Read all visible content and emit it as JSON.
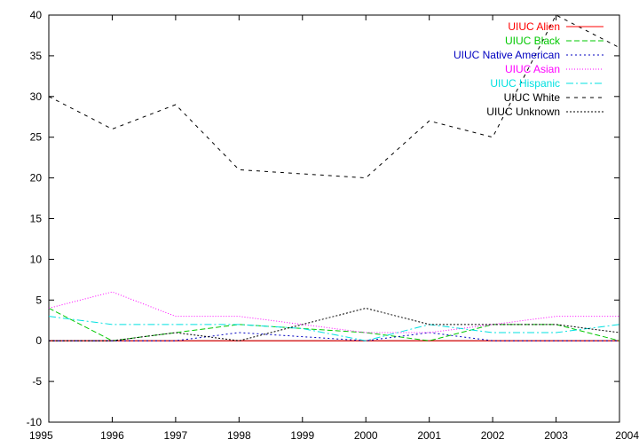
{
  "chart_data": {
    "type": "line",
    "title": "",
    "xlabel": "",
    "ylabel": "",
    "xlim": [
      1995,
      2004
    ],
    "ylim": [
      -10,
      40
    ],
    "x": [
      1995,
      1996,
      1997,
      1998,
      1999,
      2000,
      2001,
      2002,
      2003,
      2004
    ],
    "x_ticks": [
      "1995",
      "1996",
      "1997",
      "1998",
      "1999",
      "2000",
      "2001",
      "2002",
      "2003",
      "2004"
    ],
    "y_ticks": [
      "-10",
      "-5",
      "0",
      "5",
      "10",
      "15",
      "20",
      "25",
      "30",
      "35",
      "40"
    ],
    "grid": false,
    "legend_position": "top-right",
    "series": [
      {
        "name": "UIUC Alien",
        "color": "#ff0000",
        "dash": "solid",
        "values": [
          0,
          0,
          0,
          0,
          0,
          0,
          0,
          0,
          0,
          0
        ]
      },
      {
        "name": "UIUC Black",
        "color": "#00c800",
        "dash": "dashed",
        "values": [
          4,
          0,
          1,
          2,
          1.5,
          1,
          0,
          2,
          2,
          0
        ]
      },
      {
        "name": "UIUC Native American",
        "color": "#0000c0",
        "dash": "dotted",
        "values": [
          0,
          0,
          0,
          1,
          0.5,
          0,
          1,
          0,
          0,
          0
        ]
      },
      {
        "name": "UIUC Asian",
        "color": "#ff00ff",
        "dash": "fine-dotted",
        "values": [
          4,
          6,
          3,
          3,
          2,
          1,
          1,
          2,
          3,
          3
        ]
      },
      {
        "name": "UIUC Hispanic",
        "color": "#00e0e0",
        "dash": "dash-dot",
        "values": [
          3,
          2,
          2,
          2,
          1.5,
          0,
          2,
          1,
          1,
          2
        ]
      },
      {
        "name": "UIUC White",
        "color": "#000000",
        "dash": "light-dashed",
        "values": [
          30,
          26,
          29,
          21,
          20.5,
          20,
          27,
          25,
          40,
          36
        ]
      },
      {
        "name": "UIUC Unknown",
        "color": "#000000",
        "dash": "dense-dotted",
        "values": [
          0,
          0,
          1,
          0,
          2,
          4,
          2,
          2,
          2,
          1
        ]
      }
    ]
  }
}
